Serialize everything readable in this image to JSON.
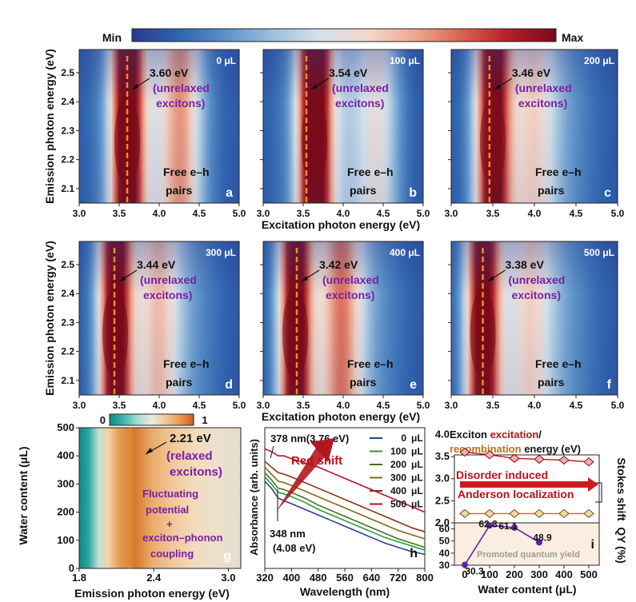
{
  "colorbar_top": {
    "min_label": "Min",
    "max_label": "Max",
    "colors": [
      "#2a3a8f",
      "#2f64b0",
      "#5d93c9",
      "#9cc0de",
      "#d6e2ec",
      "#f3d9cd",
      "#eda88f",
      "#d9634f",
      "#b31e2a",
      "#7a0a18"
    ]
  },
  "colorbar_g": {
    "min_label": "0",
    "max_label": "1",
    "colors": [
      "#0f8a86",
      "#3fb3ad",
      "#a9dcd6",
      "#e8ece0",
      "#f3c79a",
      "#ea9a52",
      "#c95f1a"
    ]
  },
  "common": {
    "excitation_xlabel": "Excitation photon energy (eV)",
    "emission_ylabel": "Emission photon energy (eV)",
    "free_pairs_line1": "Free e–h",
    "free_pairs_line2": "pairs",
    "unrelaxed_line1": "(unrelaxed",
    "unrelaxed_line2": "excitons)"
  },
  "chart_data": [
    {
      "panel": "a",
      "type": "heatmap",
      "water_label": "0 μL",
      "peak_energy_label": "3.60 eV",
      "xlim": [
        3.0,
        5.0
      ],
      "ylim": [
        2.05,
        2.58
      ],
      "xticks": [
        "3.0",
        "3.5",
        "4.0",
        "4.5",
        "5.0"
      ],
      "yticks": [
        "2.1",
        "2.2",
        "2.3",
        "2.4",
        "2.5"
      ],
      "dashed_line_x": 3.6,
      "ridge_center": 3.6,
      "ridge_intensity": 0.92,
      "secondary_center": 4.28,
      "secondary_intensity": 0.45,
      "free_pairs_intensity": 0.4
    },
    {
      "panel": "b",
      "type": "heatmap",
      "water_label": "100 μL",
      "peak_energy_label": "3.54 eV",
      "xlim": [
        3.0,
        5.0
      ],
      "ylim": [
        2.05,
        2.58
      ],
      "xticks": [
        "3.0",
        "3.5",
        "4.0",
        "4.5",
        "5.0"
      ],
      "yticks": [],
      "dashed_line_x": 3.54,
      "ridge_center": 3.64,
      "ridge_intensity": 1.0,
      "secondary_center": 4.45,
      "secondary_intensity": 0.3,
      "free_pairs_intensity": 0.35
    },
    {
      "panel": "c",
      "type": "heatmap",
      "water_label": "200 μL",
      "peak_energy_label": "3.46 eV",
      "xlim": [
        3.0,
        5.0
      ],
      "ylim": [
        2.05,
        2.58
      ],
      "xticks": [
        "3.0",
        "3.5",
        "4.0",
        "4.5",
        "5.0"
      ],
      "yticks": [],
      "dashed_line_x": 3.46,
      "ridge_center": 3.5,
      "ridge_intensity": 0.9,
      "secondary_center": 4.0,
      "secondary_intensity": 0.25,
      "free_pairs_intensity": 0.35
    },
    {
      "panel": "d",
      "type": "heatmap",
      "water_label": "300 μL",
      "peak_energy_label": "3.44 eV",
      "xlim": [
        3.0,
        5.0
      ],
      "ylim": [
        2.05,
        2.58
      ],
      "xticks": [
        "3.0",
        "3.5",
        "4.0",
        "4.5",
        "5.0"
      ],
      "yticks": [
        "2.1",
        "2.2",
        "2.3",
        "2.4",
        "2.5"
      ],
      "dashed_line_x": 3.44,
      "ridge_center": 3.45,
      "ridge_intensity": 0.92,
      "secondary_center": 4.0,
      "secondary_intensity": 0.3,
      "free_pairs_intensity": 0.35
    },
    {
      "panel": "e",
      "type": "heatmap",
      "water_label": "400 μL",
      "peak_energy_label": "3.42 eV",
      "xlim": [
        3.0,
        5.0
      ],
      "ylim": [
        2.05,
        2.58
      ],
      "xticks": [
        "3.0",
        "3.5",
        "4.0",
        "4.5",
        "5.0"
      ],
      "yticks": [],
      "dashed_line_x": 3.42,
      "ridge_center": 3.4,
      "ridge_intensity": 0.93,
      "secondary_center": 3.98,
      "secondary_intensity": 0.45,
      "free_pairs_intensity": 0.4
    },
    {
      "panel": "f",
      "type": "heatmap",
      "water_label": "500 μL",
      "peak_energy_label": "3.38 eV",
      "xlim": [
        3.0,
        5.0
      ],
      "ylim": [
        2.05,
        2.58
      ],
      "xticks": [
        "3.0",
        "3.5",
        "4.0",
        "4.5",
        "5.0"
      ],
      "yticks": [],
      "dashed_line_x": 3.38,
      "ridge_center": 3.38,
      "ridge_intensity": 0.93,
      "secondary_center": 3.95,
      "secondary_intensity": 0.25,
      "free_pairs_intensity": 0.35
    },
    {
      "panel": "g",
      "type": "heatmap",
      "xlabel": "Emission photon energy (eV)",
      "ylabel": "Water content (μL)",
      "xlim": [
        1.8,
        3.1
      ],
      "ylim": [
        0,
        500
      ],
      "xticks": [
        "1.8",
        "2.4",
        "3.0"
      ],
      "yticks": [
        "0",
        "100",
        "200",
        "300",
        "400",
        "500"
      ],
      "dashed_line_x": 2.21,
      "peak_energy_label": "2.21 eV",
      "annotation_line1": "(relaxed",
      "annotation_line2": "excitons)",
      "mechanism_lines": [
        "Fluctuating",
        "potential",
        "+",
        "exciton–phonon",
        "coupling"
      ]
    },
    {
      "panel": "h",
      "type": "line",
      "xlabel": "Wavelength (nm)",
      "ylabel": "Absorbance (arb. units)",
      "xlim": [
        320,
        800
      ],
      "xticks": [
        "320",
        "400",
        "480",
        "560",
        "640",
        "720",
        "800"
      ],
      "annotation_top": "378 nm(3.76 eV)",
      "annotation_bottom_line1": "348 nm",
      "annotation_bottom_line2": "(4.08 eV)",
      "arrow_label": "Red shift",
      "x": [
        320,
        340,
        360,
        378,
        400,
        440,
        480,
        520,
        560,
        600,
        640,
        680,
        720,
        760,
        800
      ],
      "series": [
        {
          "name": "0",
          "unit": "μL",
          "color": "#2b3f99",
          "values": [
            0.62,
            0.57,
            0.5,
            0.48,
            0.46,
            0.42,
            0.38,
            0.34,
            0.3,
            0.26,
            0.22,
            0.18,
            0.15,
            0.12,
            0.1
          ]
        },
        {
          "name": "100",
          "unit": "μL",
          "color": "#2f9a3a",
          "values": [
            0.65,
            0.6,
            0.54,
            0.53,
            0.51,
            0.47,
            0.42,
            0.38,
            0.34,
            0.3,
            0.26,
            0.22,
            0.19,
            0.16,
            0.13
          ]
        },
        {
          "name": "200",
          "unit": "μL",
          "color": "#4f6e22",
          "values": [
            0.68,
            0.63,
            0.57,
            0.56,
            0.54,
            0.5,
            0.45,
            0.41,
            0.37,
            0.33,
            0.29,
            0.25,
            0.21,
            0.18,
            0.15
          ]
        },
        {
          "name": "300",
          "unit": "μL",
          "color": "#7d6a14",
          "values": [
            0.72,
            0.67,
            0.62,
            0.61,
            0.59,
            0.55,
            0.51,
            0.47,
            0.43,
            0.39,
            0.35,
            0.31,
            0.27,
            0.24,
            0.21
          ]
        },
        {
          "name": "400",
          "unit": "μL",
          "color": "#8c2f14",
          "values": [
            0.76,
            0.72,
            0.68,
            0.67,
            0.65,
            0.61,
            0.57,
            0.53,
            0.49,
            0.45,
            0.41,
            0.37,
            0.33,
            0.29,
            0.26
          ]
        },
        {
          "name": "500",
          "unit": "μL",
          "color": "#b5122c",
          "values": [
            0.85,
            0.83,
            0.8,
            0.8,
            0.78,
            0.75,
            0.72,
            0.68,
            0.64,
            0.6,
            0.56,
            0.52,
            0.48,
            0.44,
            0.4
          ]
        }
      ]
    },
    {
      "panel": "i",
      "type": "line",
      "xlabel": "Water content (μL)",
      "title_part1": "Exciton ",
      "title_part2": "excitation",
      "title_part3": "/",
      "title_part4": "recombination",
      "title_part5": " energy (eV)",
      "top_ylabel": "Stokes shift",
      "bottom_ylabel": "QY (%)",
      "annotation_line1": "Disorder induced",
      "annotation_line2": "Anderson localization",
      "qy_annotation": "Promoted quantum yield",
      "x": [
        0,
        100,
        200,
        300,
        400,
        500
      ],
      "xticks": [
        "0",
        "100",
        "200",
        "300",
        "400",
        "500"
      ],
      "top_ylim": [
        2.0,
        3.9
      ],
      "top_yticks": [
        "2.0",
        "2.5",
        "3.0",
        "3.5",
        "4.0"
      ],
      "excitation_energy": [
        3.6,
        3.54,
        3.46,
        3.44,
        3.42,
        3.38
      ],
      "recombination_energy": [
        2.21,
        2.21,
        2.21,
        2.21,
        2.21,
        2.21
      ],
      "qy_x": [
        0,
        100,
        200,
        300
      ],
      "qy_values": [
        30.3,
        62.8,
        61.1,
        48.9
      ],
      "qy_labels": [
        "30.3",
        "62.8",
        "61.1",
        "48.9"
      ],
      "bottom_ylim": [
        30,
        65
      ],
      "bottom_yticks": [
        "30",
        "40",
        "50",
        "60"
      ]
    }
  ]
}
